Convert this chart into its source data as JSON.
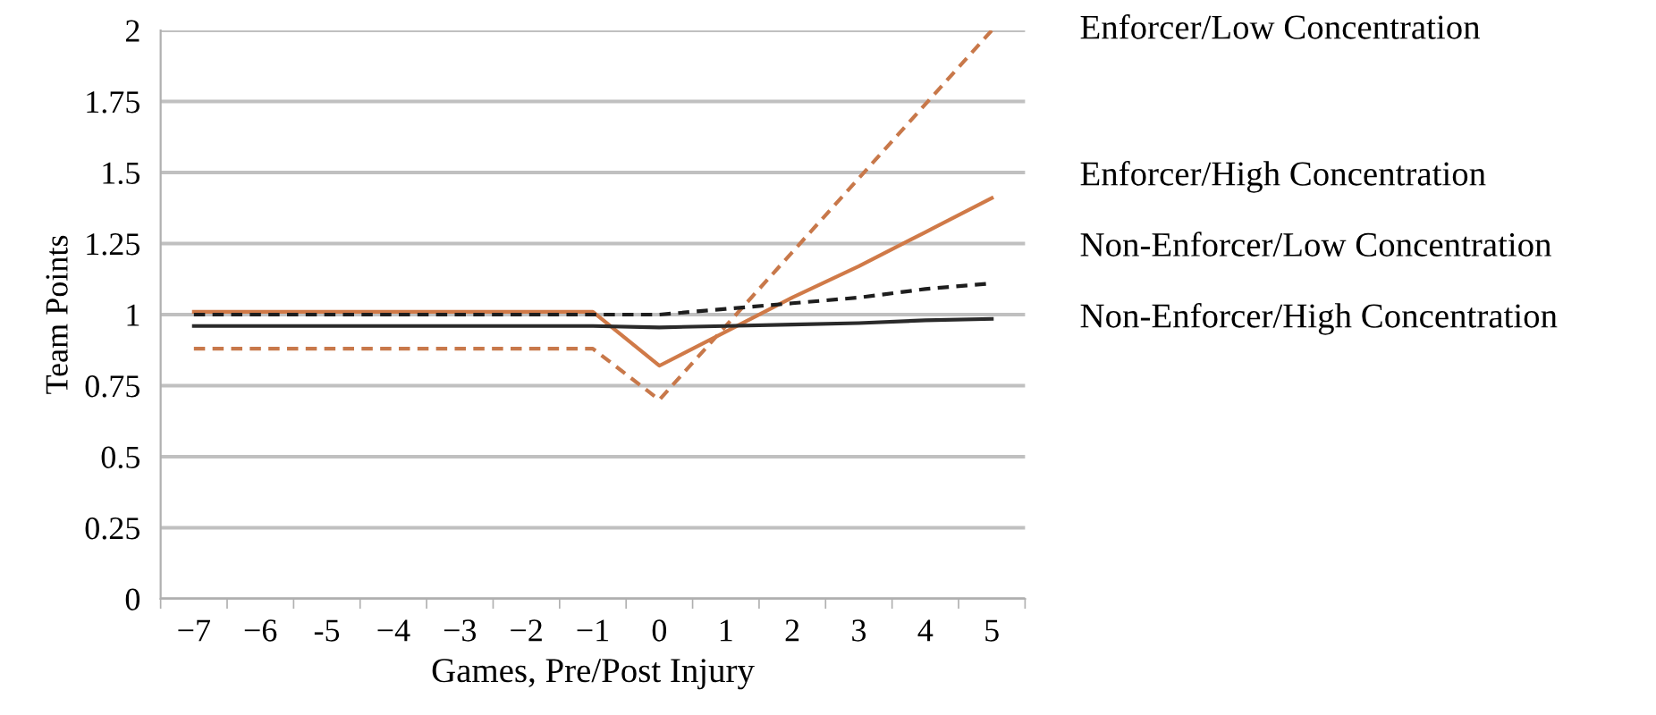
{
  "chart_data": {
    "type": "line",
    "xlabel": "Games, Pre/Post Injury",
    "ylabel": "Team Points",
    "categories": [
      "−7",
      "−6",
      "-5",
      "−4",
      "−3",
      "−2",
      "−1",
      "0",
      "1",
      "2",
      "3",
      "4",
      "5"
    ],
    "ylim": [
      0,
      2
    ],
    "yticks": [
      0,
      0.25,
      0.5,
      0.75,
      1,
      1.25,
      1.5,
      1.75,
      2
    ],
    "grid": "y",
    "legend": false,
    "series": [
      {
        "name": "Enforcer/Low Concentration",
        "color": "#c8784a",
        "line_style": "dashed",
        "values": [
          0.88,
          0.88,
          0.88,
          0.88,
          0.88,
          0.88,
          0.88,
          0.7,
          0.96,
          1.22,
          1.48,
          1.74,
          2.0
        ]
      },
      {
        "name": "Enforcer/High Concentration",
        "color": "#d07a48",
        "line_style": "solid",
        "values": [
          1.01,
          1.01,
          1.01,
          1.01,
          1.01,
          1.01,
          1.01,
          0.82,
          0.94,
          1.06,
          1.17,
          1.29,
          1.41
        ]
      },
      {
        "name": "Non-Enforcer/Low Concentration",
        "color": "#1e1e1e",
        "line_style": "dashed",
        "values": [
          1.0,
          1.0,
          1.0,
          1.0,
          1.0,
          1.0,
          1.0,
          1.0,
          1.02,
          1.04,
          1.06,
          1.09,
          1.11
        ]
      },
      {
        "name": "Non-Enforcer/High Concentration",
        "color": "#2a2a2a",
        "line_style": "solid",
        "values": [
          0.96,
          0.96,
          0.96,
          0.96,
          0.96,
          0.96,
          0.96,
          0.955,
          0.96,
          0.965,
          0.97,
          0.98,
          0.985
        ]
      }
    ]
  }
}
